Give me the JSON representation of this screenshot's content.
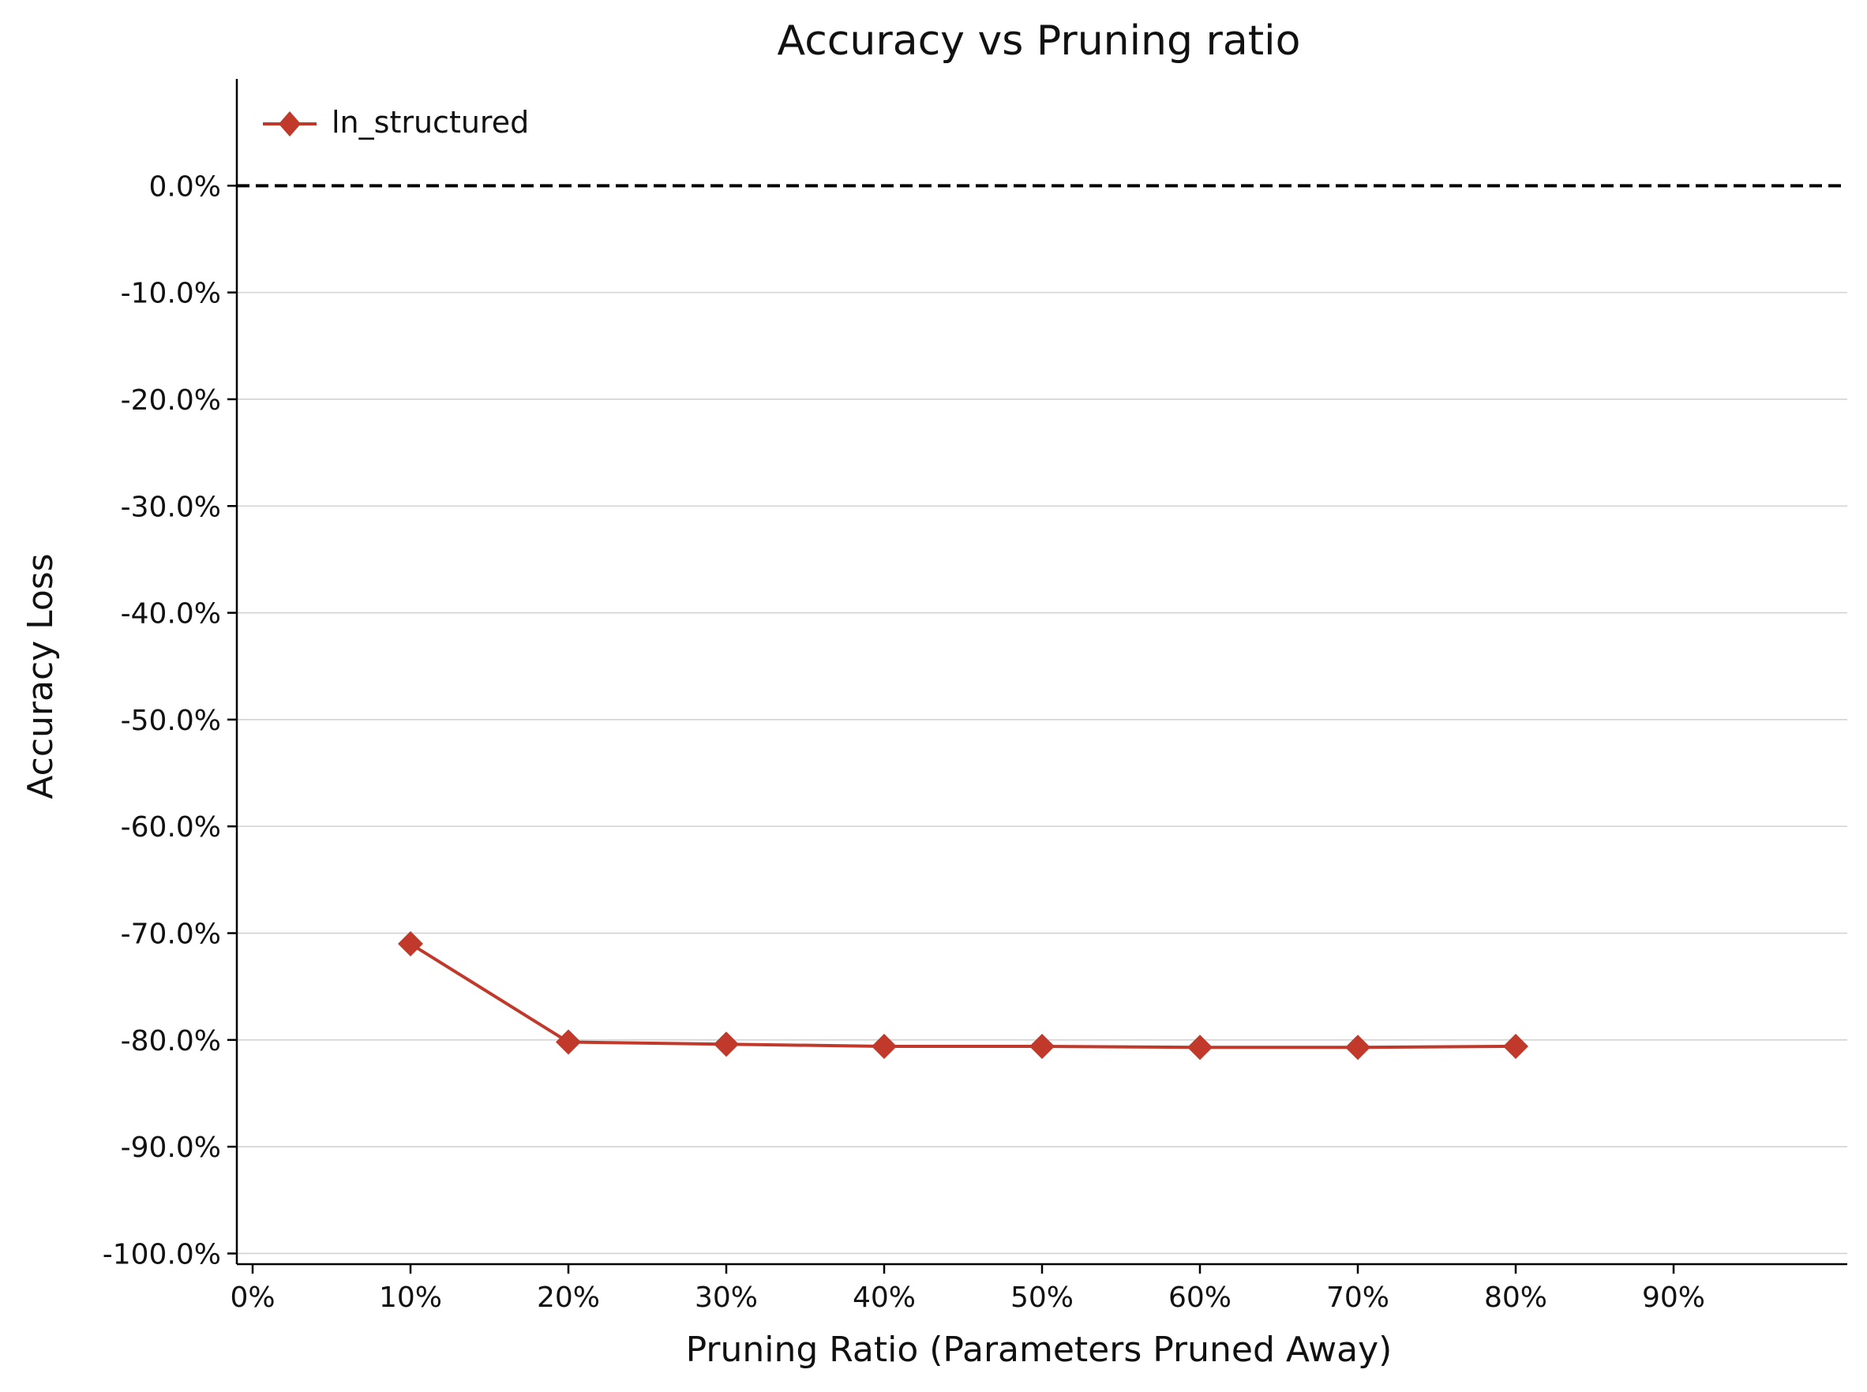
{
  "chart_data": {
    "type": "line",
    "title": "Accuracy vs Pruning ratio",
    "xlabel": "Pruning Ratio (Parameters Pruned Away)",
    "ylabel": "Accuracy Loss",
    "xlim": [
      -0.01,
      1.01
    ],
    "ylim": [
      -1.01,
      0.1
    ],
    "x_ticks": [
      0,
      0.1,
      0.2,
      0.3,
      0.4,
      0.5,
      0.6,
      0.7,
      0.8,
      0.9
    ],
    "x_tick_labels": [
      "0%",
      "10%",
      "20%",
      "30%",
      "40%",
      "50%",
      "60%",
      "70%",
      "80%",
      "90%"
    ],
    "y_ticks": [
      0,
      -0.1,
      -0.2,
      -0.3,
      -0.4,
      -0.5,
      -0.6,
      -0.7,
      -0.8,
      -0.9,
      -1.0
    ],
    "y_tick_labels": [
      "0.0%",
      "-10.0%",
      "-20.0%",
      "-30.0%",
      "-40.0%",
      "-50.0%",
      "-60.0%",
      "-70.0%",
      "-80.0%",
      "-90.0%",
      "-100.0%"
    ],
    "grid": "horizontal",
    "reference_line": {
      "y": 0,
      "style": "dashed",
      "color": "#000000"
    },
    "legend_position": "top-left",
    "series": [
      {
        "name": "ln_structured",
        "color": "#c0392b",
        "marker": "diamond",
        "x": [
          0.1,
          0.2,
          0.3,
          0.4,
          0.5,
          0.6,
          0.7,
          0.8
        ],
        "y": [
          -0.71,
          -0.802,
          -0.804,
          -0.806,
          -0.806,
          -0.807,
          -0.807,
          -0.806
        ]
      }
    ]
  }
}
